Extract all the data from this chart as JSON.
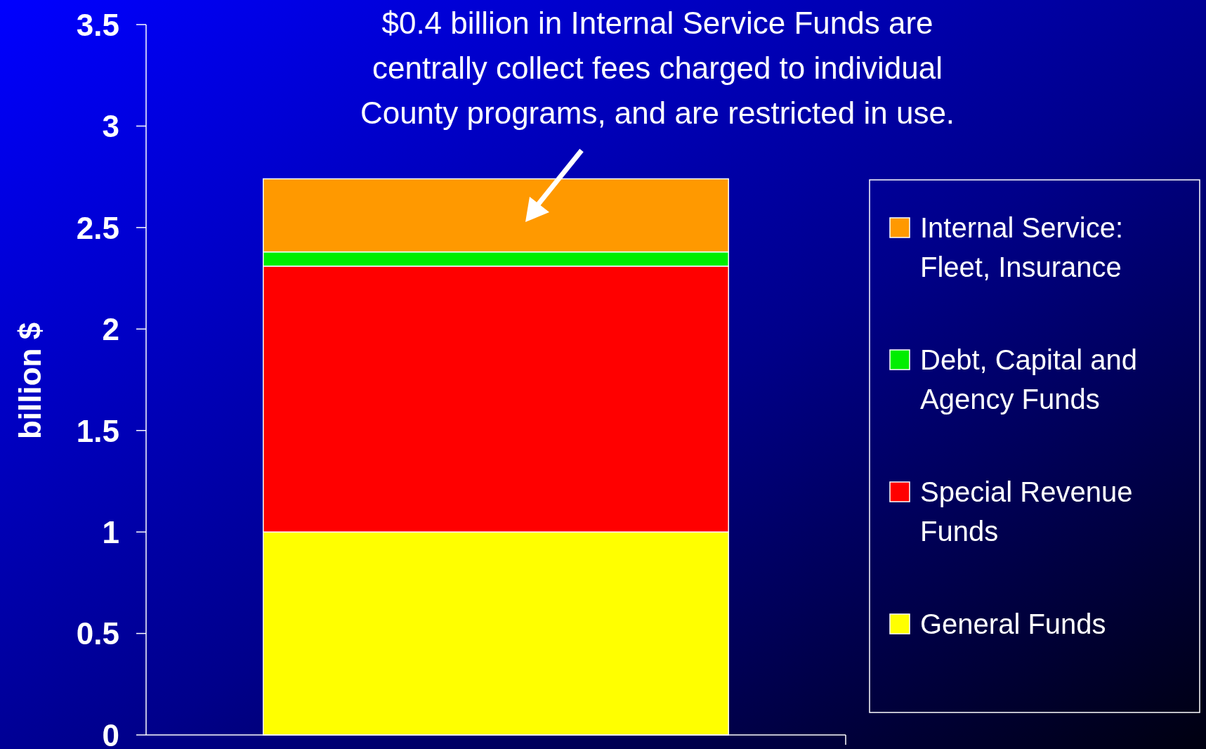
{
  "chart_data": {
    "type": "bar",
    "stacked": true,
    "categories": [
      null
    ],
    "series": [
      {
        "name": "General Funds",
        "color": "#ffff00",
        "values": [
          1.0
        ]
      },
      {
        "name": "Special Revenue Funds",
        "color": "#ff0000",
        "values": [
          1.31
        ]
      },
      {
        "name": "Debt, Capital and Agency Funds",
        "color": "#00ee00",
        "values": [
          0.07
        ]
      },
      {
        "name": "Internal Service: Fleet, Insurance",
        "color": "#ff9900",
        "values": [
          0.36
        ]
      }
    ],
    "ylabel": "billion $",
    "ylim": [
      0,
      3.5
    ],
    "yticks": [
      0,
      0.5,
      1,
      1.5,
      2,
      2.5,
      3,
      3.5
    ],
    "annotations": [
      "$0.4 billion in Internal Service Funds are centrally collect fees charged to individual County programs, and are restricted in use."
    ],
    "legend": "right",
    "grid": false
  }
}
